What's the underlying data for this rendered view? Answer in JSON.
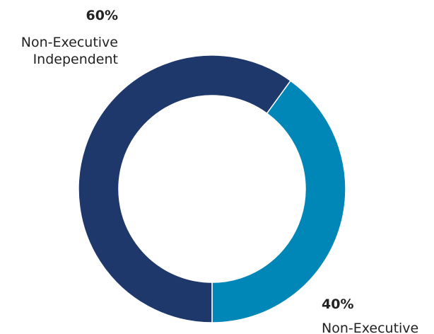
{
  "chart_data": {
    "type": "pie",
    "donut": true,
    "title": "",
    "slices": [
      {
        "label_line1": "Non-Executive",
        "label_line2": "Independent",
        "value": 60,
        "percent_label": "60%",
        "color": "#1f386b"
      },
      {
        "label_line1": "Non-Executive",
        "label_line2": "",
        "value": 40,
        "percent_label": "40%",
        "color": "#0087b8"
      }
    ],
    "legend": "none"
  }
}
